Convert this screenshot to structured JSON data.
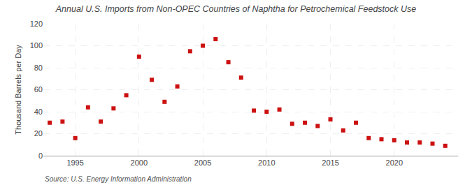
{
  "chart_data": {
    "type": "scatter",
    "title": "Annual U.S. Imports from Non-OPEC Countries of Naphtha for Petrochemical Feedstock Use",
    "ylabel": "Thousand Barrels per Day",
    "annotations": [
      "Source: U.S. Energy Information Administration"
    ],
    "x": [
      1993,
      1994,
      1995,
      1996,
      1997,
      1998,
      1999,
      2000,
      2001,
      2002,
      2003,
      2004,
      2005,
      2006,
      2007,
      2008,
      2009,
      2010,
      2011,
      2012,
      2013,
      2014,
      2015,
      2016,
      2017,
      2018,
      2019,
      2020,
      2021,
      2022,
      2023,
      2024
    ],
    "values": [
      30,
      31,
      16,
      44,
      31,
      43,
      55,
      90,
      69,
      49,
      63,
      95,
      100,
      106,
      85,
      71,
      41,
      40,
      42,
      29,
      30,
      27,
      33,
      23,
      30,
      16,
      15,
      14,
      12,
      12,
      11,
      9
    ],
    "color": "#cc1111",
    "marker": "square",
    "xlim": [
      1992.5,
      2025
    ],
    "xticks": [
      1995,
      2000,
      2005,
      2010,
      2015,
      2020
    ],
    "ylim": [
      0,
      120
    ],
    "yticks": [
      0,
      20,
      40,
      60,
      80,
      100,
      120
    ],
    "grid": true
  }
}
